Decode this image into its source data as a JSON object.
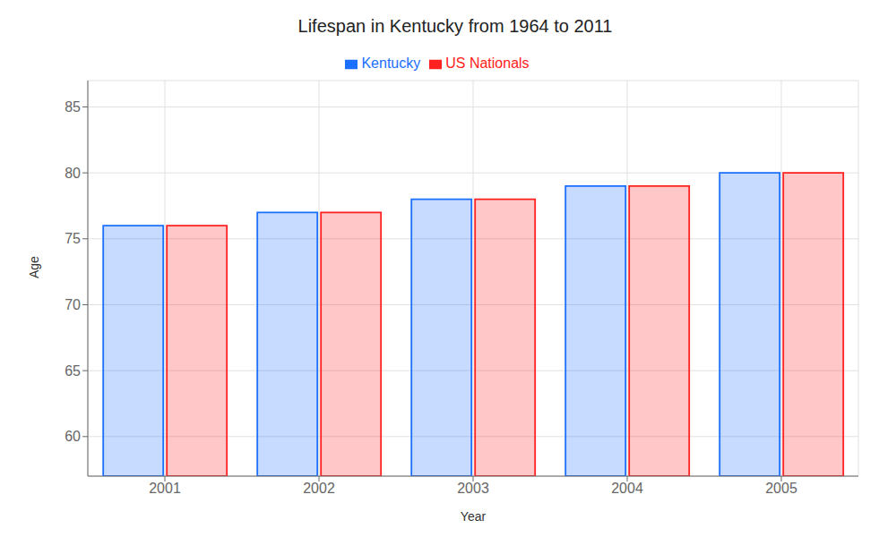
{
  "chart_data": {
    "type": "bar",
    "title": "Lifespan in Kentucky from 1964 to 2011",
    "x_label": "Year",
    "y_label": "Age",
    "categories": [
      "2001",
      "2002",
      "2003",
      "2004",
      "2005"
    ],
    "series": [
      {
        "name": "Kentucky",
        "color": "#1a6fff",
        "values": [
          76,
          77,
          78,
          79,
          80
        ]
      },
      {
        "name": "US Nationals",
        "color": "#ff2020",
        "values": [
          76,
          77,
          78,
          79,
          80
        ]
      }
    ],
    "ylim": [
      57,
      87
    ],
    "yticks": [
      60,
      65,
      70,
      75,
      80,
      85
    ],
    "grid": true,
    "legend": "top"
  }
}
